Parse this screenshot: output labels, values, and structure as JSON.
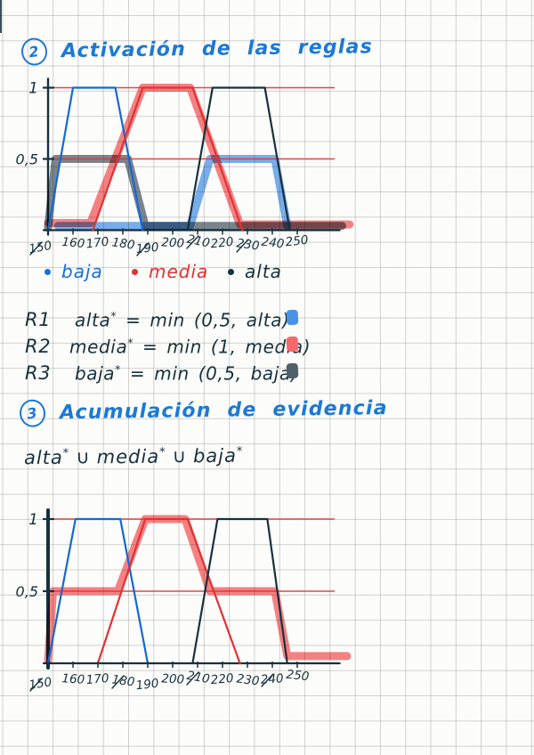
{
  "palette": {
    "title_blue": "#1b79d6",
    "ink_dark": "#17313d",
    "pen_blue": "#1668d2",
    "pen_red": "#e23134",
    "marker_blue": "#4b94ea",
    "marker_red": "#f4595c",
    "marker_gray": "#4e5d68",
    "paper": "#fcfcfa"
  },
  "section2": {
    "number": "2",
    "title": "Activación de las reglas"
  },
  "legend": [
    {
      "label": "baja",
      "color": "#1a6fd4"
    },
    {
      "label": "media",
      "color": "#e23134"
    },
    {
      "label": "alta",
      "color": "#17313d"
    }
  ],
  "rules": [
    {
      "id": "R1",
      "lhs": "alta",
      "rhs": "= min (0,5, alta)",
      "swatch": "#4a92e6"
    },
    {
      "id": "R2",
      "lhs": "media",
      "rhs": "= min (1, media)",
      "swatch": "#f4696b"
    },
    {
      "id": "R3",
      "lhs": "baja",
      "rhs": "= min (0,5, baja)",
      "swatch": "#50606a"
    }
  ],
  "section3": {
    "number": "3",
    "title": "Acumulación de evidencia",
    "expression": {
      "terms": [
        "alta",
        "media",
        "baja"
      ],
      "operator": "∪",
      "sup": "*"
    }
  },
  "chart_data": [
    {
      "type": "line",
      "title": "Activación de las reglas",
      "xlabel": "",
      "ylabel": "",
      "xlim": [
        150,
        268
      ],
      "ylim": [
        0,
        1.1
      ],
      "grid": false,
      "legend_position": "below",
      "x_ticks": [
        150,
        160,
        170,
        180,
        190,
        200,
        210,
        220,
        230,
        240,
        250
      ],
      "y_ticks": [
        {
          "value": 1,
          "label": "1"
        },
        {
          "value": 0.5,
          "label": "0,5"
        }
      ],
      "slashed_x_ticks": [
        150,
        190,
        210,
        230
      ],
      "reference_lines": [
        {
          "y": 1,
          "color": "#e23134"
        },
        {
          "y": 0.5,
          "color": "#e23134"
        }
      ],
      "series": [
        {
          "name": "baja",
          "role": "membership",
          "style": "thin",
          "color": "#1668d2",
          "points": [
            [
              150,
              0
            ],
            [
              160,
              1
            ],
            [
              177,
              1
            ],
            [
              188,
              0
            ]
          ]
        },
        {
          "name": "media",
          "role": "membership",
          "style": "thin",
          "color": "#e23134",
          "points": [
            [
              168,
              0
            ],
            [
              188,
              1
            ],
            [
              208,
              1
            ],
            [
              228,
              0
            ]
          ]
        },
        {
          "name": "alta",
          "role": "membership",
          "style": "thin",
          "color": "#17313d",
          "points": [
            [
              206,
              0
            ],
            [
              216,
              1
            ],
            [
              237,
              1
            ],
            [
              247,
              0
            ]
          ]
        }
      ],
      "marker_series": [
        {
          "name": "baja* = min (0,5, baja)",
          "style": "marker",
          "color": "#4e5d68",
          "points": [
            [
              150,
              0.02
            ],
            [
              153,
              0.5
            ],
            [
              182,
              0.5
            ],
            [
              189,
              0.03
            ],
            [
              268,
              0.03
            ]
          ]
        },
        {
          "name": "media* = min (1, media)",
          "style": "marker",
          "color": "#f4595c",
          "points": [
            [
              150,
              0.05
            ],
            [
              167,
              0.05
            ],
            [
              188,
              1
            ],
            [
              207,
              1
            ],
            [
              227,
              0.04
            ],
            [
              271,
              0.04
            ]
          ]
        },
        {
          "name": "alta* = min (0,5, alta)",
          "style": "marker",
          "color": "#4b94ea",
          "points": [
            [
              154,
              0.03
            ],
            [
              207,
              0.03
            ],
            [
              215,
              0.5
            ],
            [
              241,
              0.5
            ],
            [
              246,
              0.03
            ]
          ]
        }
      ]
    },
    {
      "type": "line",
      "title": "Acumulación de evidencia",
      "xlabel": "",
      "ylabel": "",
      "xlim": [
        150,
        268
      ],
      "ylim": [
        0,
        1.1
      ],
      "grid": false,
      "legend_position": "none",
      "x_ticks": [
        150,
        160,
        170,
        180,
        190,
        200,
        210,
        220,
        230,
        240,
        250
      ],
      "y_ticks": [
        {
          "value": 1,
          "label": "1"
        },
        {
          "value": 0.5,
          "label": "0,5"
        }
      ],
      "slashed_x_ticks": [
        150,
        180,
        210,
        240
      ],
      "reference_lines": [
        {
          "y": 1,
          "color": "#e23134"
        },
        {
          "y": 0.5,
          "color": "#e23134"
        }
      ],
      "series": [
        {
          "name": "baja",
          "role": "membership",
          "style": "thin",
          "color": "#1668d2",
          "points": [
            [
              150,
              0
            ],
            [
              161,
              1
            ],
            [
              179,
              1
            ],
            [
              190,
              0
            ]
          ]
        },
        {
          "name": "media",
          "role": "membership",
          "style": "thin",
          "color": "#e23134",
          "points": [
            [
              170,
              0
            ],
            [
              189,
              1
            ],
            [
              206,
              1
            ],
            [
              227,
              0
            ]
          ]
        },
        {
          "name": "alta",
          "role": "membership",
          "style": "thin",
          "color": "#17313d",
          "points": [
            [
              208,
              0
            ],
            [
              218,
              1
            ],
            [
              238,
              1
            ],
            [
              246,
              0
            ]
          ]
        }
      ],
      "marker_series": [
        {
          "name": "alta* ∪ media* ∪ baja*",
          "style": "marker",
          "color": "#f4595c",
          "points": [
            [
              150,
              0.02
            ],
            [
              152,
              0.5
            ],
            [
              178,
              0.5
            ],
            [
              189,
              1
            ],
            [
              205,
              1
            ],
            [
              215,
              0.5
            ],
            [
              241,
              0.5
            ],
            [
              246,
              0.05
            ],
            [
              270,
              0.05
            ]
          ]
        }
      ]
    }
  ]
}
